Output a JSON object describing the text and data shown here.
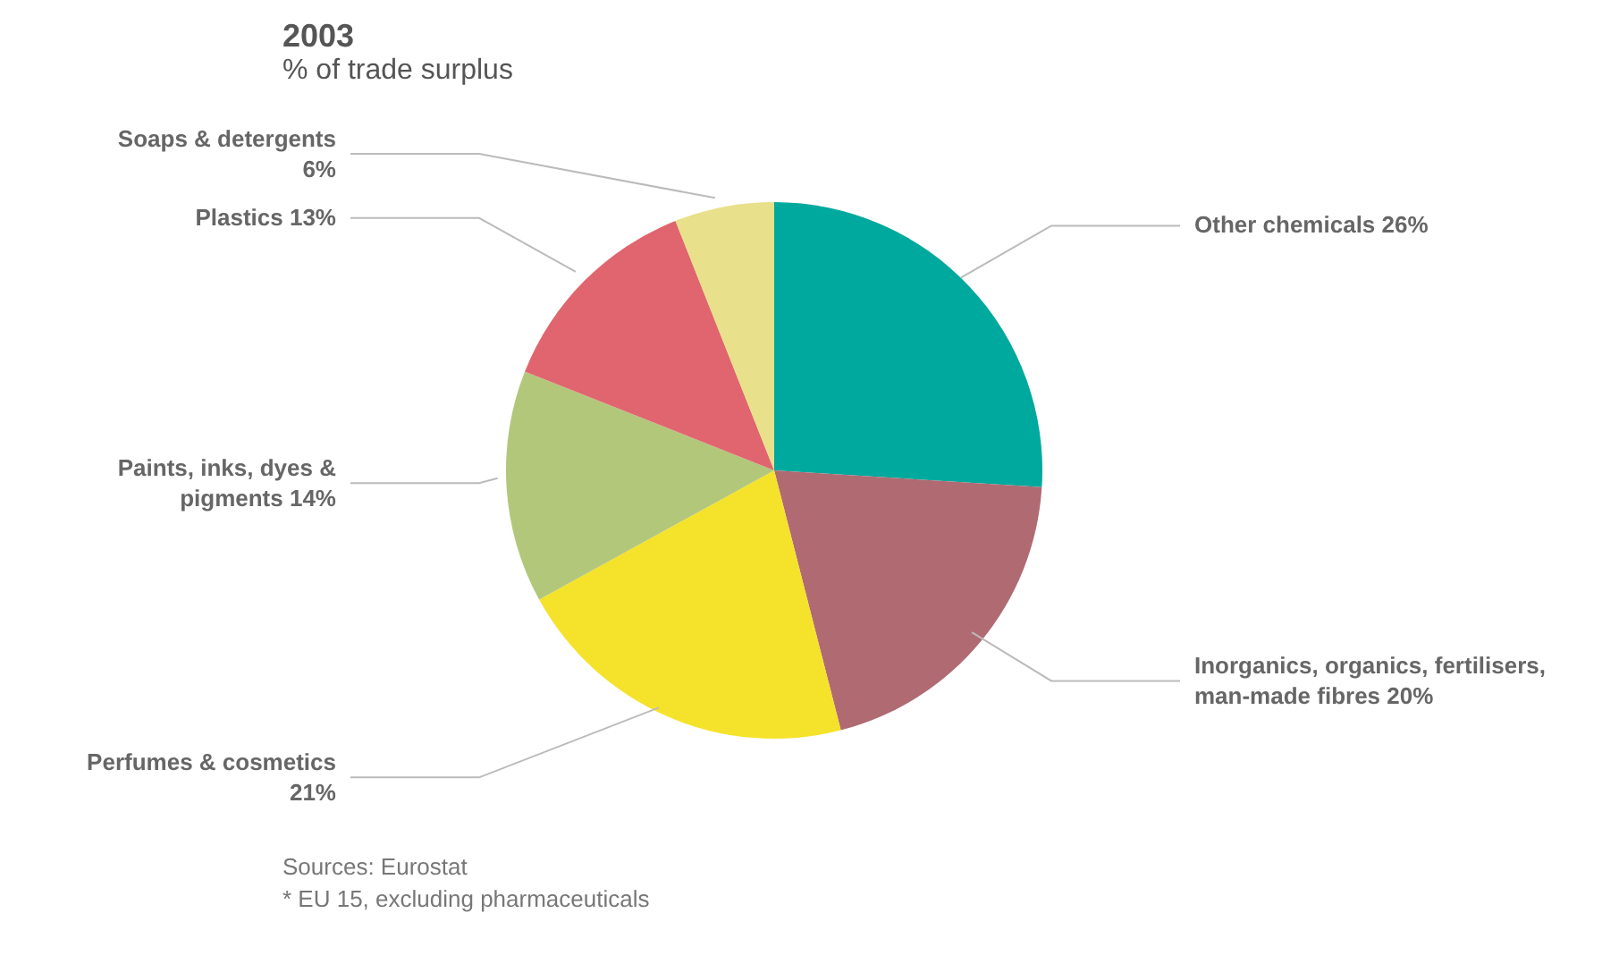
{
  "chart_data": {
    "type": "pie",
    "title": "2003",
    "subtitle": "% of trade surplus",
    "categories": [
      "Other chemicals",
      "Inorganics, organics, fertilisers, man-made fibres",
      "Perfumes & cosmetics",
      "Paints, inks, dyes & pigments",
      "Plastics",
      "Soaps & detergents"
    ],
    "values": [
      26,
      20,
      21,
      14,
      13,
      6
    ],
    "colors": [
      "#00a99d",
      "#b06a72",
      "#f5e22a",
      "#b3c77a",
      "#e0656e",
      "#e8e08a"
    ],
    "value_labels": [
      "26%",
      "20%",
      "21%",
      "14%",
      "13%",
      "6%"
    ],
    "annotations": [
      "Sources: Eurostat",
      "* EU 15, excluding pharmaceuticals"
    ]
  }
}
